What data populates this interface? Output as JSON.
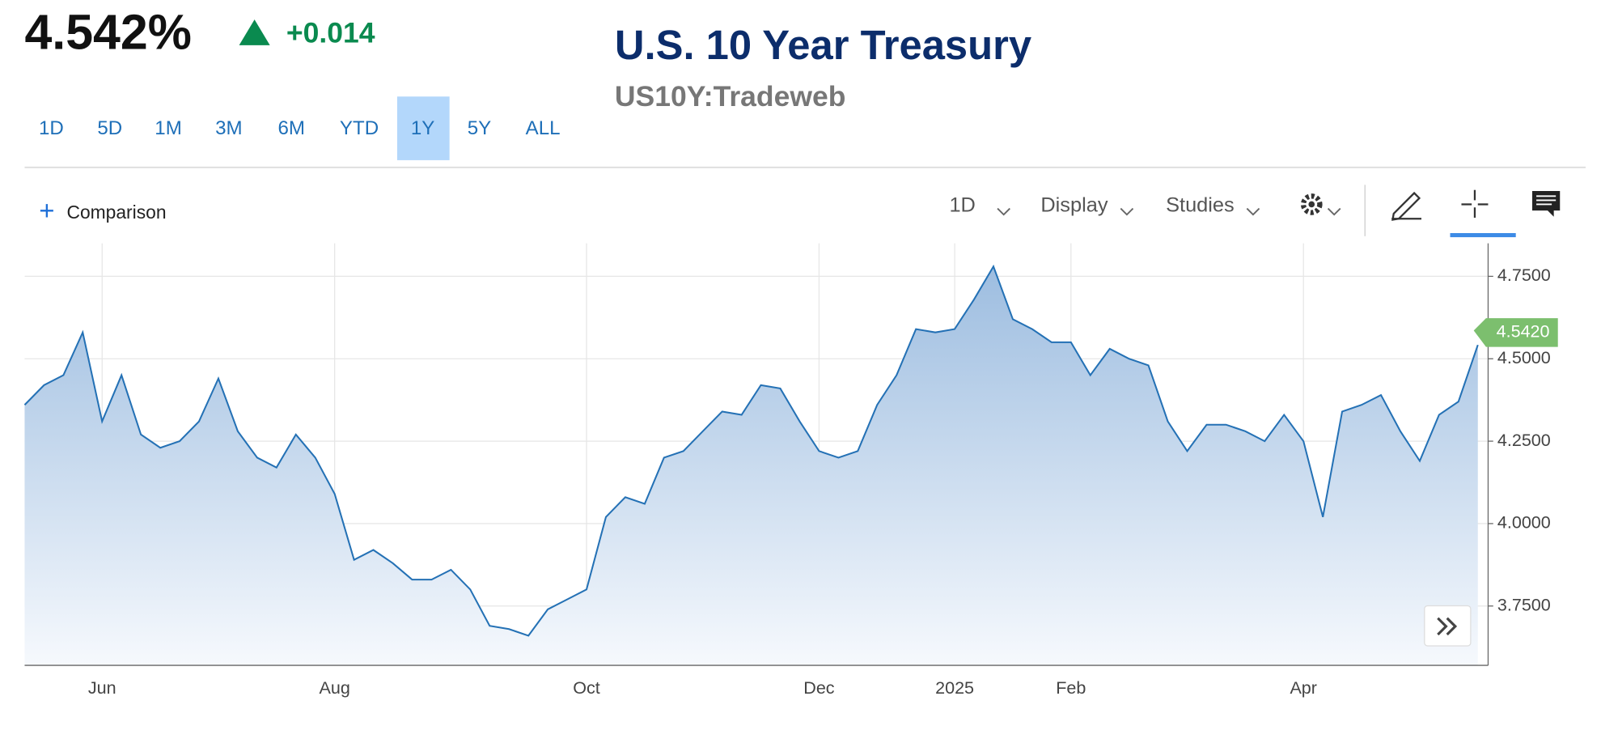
{
  "header": {
    "price": "4.542%",
    "change": "+0.014",
    "title": "U.S. 10 Year Treasury",
    "subtitle": "US10Y:Tradeweb",
    "ranges": [
      "1D",
      "5D",
      "1M",
      "3M",
      "6M",
      "YTD",
      "1Y",
      "5Y",
      "ALL"
    ],
    "selected_range": "1Y"
  },
  "toolbar": {
    "comparison": "Comparison",
    "interval": "1D",
    "display": "Display",
    "studies": "Studies"
  },
  "chart_data": {
    "type": "area",
    "color": "#2471b5",
    "categories": [
      null,
      null,
      null,
      null,
      "Jun",
      null,
      null,
      null,
      null,
      null,
      null,
      null,
      null,
      null,
      null,
      null,
      "Aug",
      null,
      null,
      null,
      null,
      null,
      null,
      null,
      null,
      null,
      null,
      null,
      null,
      "Oct",
      null,
      null,
      null,
      null,
      null,
      null,
      null,
      null,
      null,
      null,
      null,
      "Dec",
      null,
      null,
      null,
      null,
      null,
      null,
      "2025",
      null,
      null,
      null,
      null,
      null,
      "Feb",
      null,
      null,
      null,
      null,
      null,
      null,
      null,
      null,
      null,
      null,
      null,
      "Apr",
      null,
      null,
      null,
      null,
      null,
      null,
      null,
      null,
      null
    ],
    "values": [
      4.36,
      4.42,
      4.45,
      4.58,
      4.31,
      4.45,
      4.27,
      4.23,
      4.25,
      4.31,
      4.44,
      4.28,
      4.2,
      4.17,
      4.27,
      4.2,
      4.09,
      3.89,
      3.92,
      3.88,
      3.83,
      3.83,
      3.86,
      3.8,
      3.69,
      3.68,
      3.66,
      3.74,
      3.77,
      3.8,
      4.02,
      4.08,
      4.06,
      4.2,
      4.22,
      4.28,
      4.34,
      4.33,
      4.42,
      4.41,
      4.31,
      4.22,
      4.2,
      4.22,
      4.36,
      4.45,
      4.59,
      4.58,
      4.59,
      4.68,
      4.78,
      4.62,
      4.59,
      4.55,
      4.55,
      4.45,
      4.53,
      4.5,
      4.48,
      4.31,
      4.22,
      4.3,
      4.3,
      4.28,
      4.25,
      4.33,
      4.25,
      4.02,
      4.34,
      4.36,
      4.39,
      4.28,
      4.19,
      4.33,
      4.37,
      4.542
    ],
    "value_labels": [
      null,
      null,
      null,
      null,
      null,
      null,
      null,
      null,
      null,
      null,
      null,
      null,
      null,
      null,
      null,
      null,
      null,
      null,
      null,
      null,
      null,
      null,
      null,
      null,
      null,
      null,
      null,
      null,
      null,
      null,
      null,
      null,
      null,
      null,
      null,
      null,
      null,
      null,
      null,
      null,
      null,
      null,
      null,
      null,
      null,
      null,
      null,
      null,
      null,
      null,
      null,
      null,
      null,
      null,
      null,
      null,
      null,
      null,
      null,
      null,
      null,
      null,
      null,
      null,
      null,
      null,
      null,
      null,
      null,
      null,
      null,
      null,
      null,
      null,
      null,
      "4.5420"
    ],
    "ylim": [
      3.57,
      4.85
    ],
    "yticks": [
      {
        "value": 3.75,
        "label": "3.7500"
      },
      {
        "value": 4.0,
        "label": "4.0000"
      },
      {
        "value": 4.25,
        "label": "4.2500"
      },
      {
        "value": 4.5,
        "label": "4.5000"
      },
      {
        "value": 4.75,
        "label": "4.7500"
      }
    ],
    "grid": true
  }
}
